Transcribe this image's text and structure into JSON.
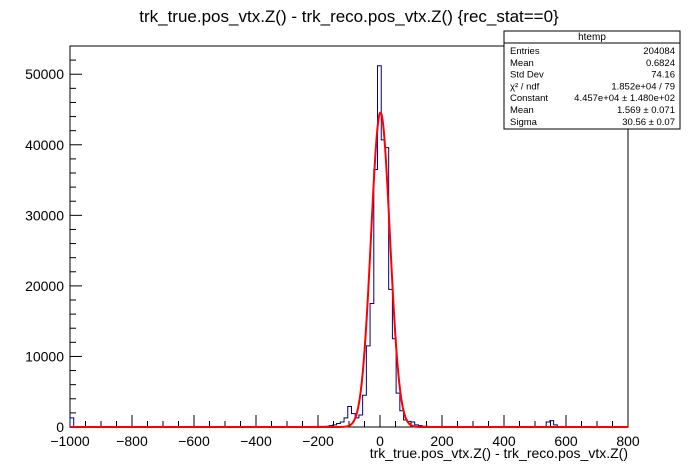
{
  "chart_data": {
    "type": "histogram",
    "title": "trk_true.pos_vtx.Z() - trk_reco.pos_vtx.Z() {rec_stat==0}",
    "xlabel": "trk_true.pos_vtx.Z() - trk_reco.pos_vtx.Z()",
    "ylabel": "",
    "xlim": [
      -1000,
      800
    ],
    "ylim": [
      0,
      54000
    ],
    "xticks": [
      -1000,
      -800,
      -600,
      -400,
      -200,
      0,
      200,
      400,
      600,
      800
    ],
    "xtick_labels": [
      "−1000",
      "−800",
      "−600",
      "−400",
      "−200",
      "0",
      "200",
      "400",
      "600",
      "800"
    ],
    "yticks": [
      0,
      10000,
      20000,
      30000,
      40000,
      50000
    ],
    "ytick_labels": [
      "0",
      "10000",
      "20000",
      "30000",
      "40000",
      "50000"
    ],
    "bin_width": 12,
    "histogram": {
      "color": "#000080",
      "bins": [
        {
          "x": -1000,
          "y": 1300
        },
        {
          "x": -200,
          "y": 80
        },
        {
          "x": -188,
          "y": 80
        },
        {
          "x": -176,
          "y": 100
        },
        {
          "x": -164,
          "y": 200
        },
        {
          "x": -152,
          "y": 300
        },
        {
          "x": -140,
          "y": 500
        },
        {
          "x": -128,
          "y": 700
        },
        {
          "x": -116,
          "y": 1300
        },
        {
          "x": -104,
          "y": 2900
        },
        {
          "x": -92,
          "y": 1900
        },
        {
          "x": -80,
          "y": 1300
        },
        {
          "x": -68,
          "y": 1700
        },
        {
          "x": -56,
          "y": 4500
        },
        {
          "x": -44,
          "y": 11500
        },
        {
          "x": -32,
          "y": 17500
        },
        {
          "x": -20,
          "y": 36500
        },
        {
          "x": -8,
          "y": 51200
        },
        {
          "x": 4,
          "y": 40700
        },
        {
          "x": 16,
          "y": 39600
        },
        {
          "x": 28,
          "y": 19500
        },
        {
          "x": 40,
          "y": 12500
        },
        {
          "x": 52,
          "y": 4800
        },
        {
          "x": 64,
          "y": 2300
        },
        {
          "x": 76,
          "y": 1000
        },
        {
          "x": 88,
          "y": 800
        },
        {
          "x": 100,
          "y": 700
        },
        {
          "x": 112,
          "y": 300
        },
        {
          "x": 124,
          "y": 200
        },
        {
          "x": 136,
          "y": 100
        },
        {
          "x": 148,
          "y": 80
        },
        {
          "x": 536,
          "y": 700
        },
        {
          "x": 548,
          "y": 900
        },
        {
          "x": 560,
          "y": 300
        }
      ]
    },
    "fit": {
      "type": "gaus",
      "color": "#ff0000",
      "constant": 44570,
      "mean": 1.569,
      "sigma": 30.56,
      "range": [
        -1000,
        800
      ]
    },
    "legend_placement": "top-right",
    "stats": {
      "title": "htemp",
      "rows": [
        {
          "label": "Entries",
          "value": "204084"
        },
        {
          "label": "Mean",
          "value": "0.6824"
        },
        {
          "label": "Std Dev",
          "value": "74.16"
        },
        {
          "label": "χ² / ndf",
          "value": "1.852e+04 / 79"
        },
        {
          "label": "Constant",
          "value": "4.457e+04 ± 1.480e+02"
        },
        {
          "label": "Mean",
          "value": "1.569 ± 0.071"
        },
        {
          "label": "Sigma",
          "value": "30.56 ± 0.07"
        }
      ]
    }
  }
}
